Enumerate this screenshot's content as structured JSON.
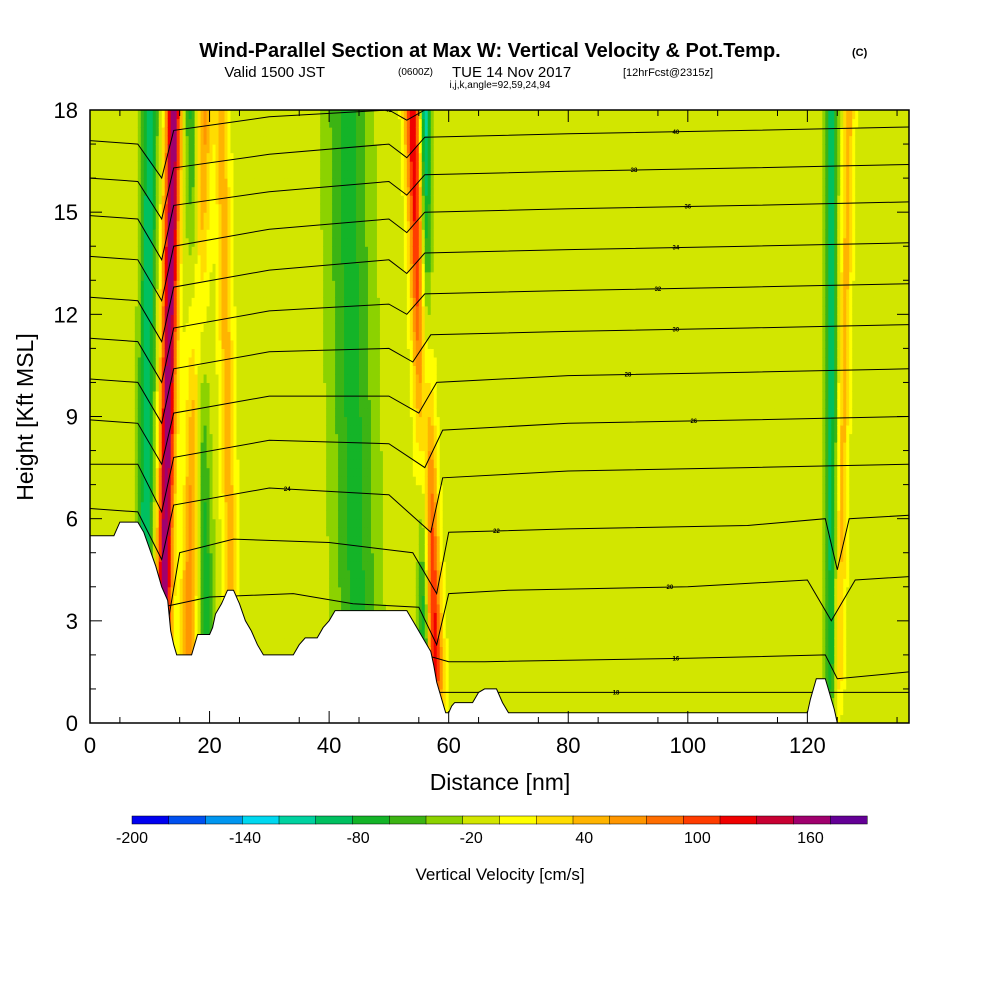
{
  "chart_data": {
    "type": "heatmap",
    "title": "Wind-Parallel Section at Max W: Vertical Velocity & Pot.Temp.",
    "title_suffix": "(C)",
    "subtitle_main": "Valid 1500 JST",
    "subtitle_z": "(0600Z)",
    "subtitle_date": "TUE 14 Nov 2017",
    "subtitle_fcst": "[12hrFcst@2315z]",
    "subtitle2": "i,j,k,angle=92,59,24,94",
    "xlabel": "Distance [nm]",
    "ylabel": "Height [Kft MSL]",
    "xlim": [
      0,
      137
    ],
    "ylim": [
      0,
      18
    ],
    "x_ticks": [
      "0",
      "20",
      "40",
      "60",
      "80",
      "100",
      "120"
    ],
    "y_ticks": [
      "0",
      "3",
      "6",
      "9",
      "12",
      "15",
      "18"
    ],
    "colorbar": {
      "label": "Vertical Velocity [cm/s]",
      "range": [
        -200,
        190
      ],
      "tick_labels": [
        "-200",
        "-140",
        "-80",
        "-20",
        "40",
        "100",
        "160"
      ],
      "colors": [
        "#0000f0",
        "#0050f0",
        "#0096f0",
        "#00d8f0",
        "#00d2a0",
        "#00c060",
        "#14b428",
        "#3cb414",
        "#8cd200",
        "#d2e600",
        "#ffff00",
        "#ffdc00",
        "#ffb400",
        "#ff9600",
        "#ff6e00",
        "#ff3c00",
        "#f00000",
        "#c80032",
        "#a0006e",
        "#640096"
      ]
    },
    "background_w": -15,
    "updrafts": [
      {
        "x_base": 12,
        "x_top": 14,
        "width": 1.3,
        "peak": 185
      },
      {
        "x_base": 16,
        "x_top": 19,
        "width": 1.4,
        "peak": 80
      },
      {
        "x_base": 24,
        "x_top": 22,
        "width": 1.2,
        "peak": 60
      },
      {
        "x_base": 58,
        "x_top": 54,
        "width": 1.4,
        "peak": 150
      },
      {
        "x_base": 125,
        "x_top": 127,
        "width": 1.0,
        "peak": 55
      }
    ],
    "downdrafts": [
      {
        "x_base": 9,
        "x_top": 10,
        "width": 1.3,
        "peak": -85
      },
      {
        "x_base": 20,
        "x_top": 17,
        "width": 1.3,
        "peak": -60
      },
      {
        "x_base": 45,
        "x_top": 43,
        "width": 3.5,
        "peak": -55
      },
      {
        "x_base": 56,
        "x_top": 56,
        "width": 1.0,
        "peak": -110
      },
      {
        "x_base": 124,
        "x_top": 124,
        "width": 1.0,
        "peak": -75
      }
    ],
    "terrain": [
      [
        0,
        5.5
      ],
      [
        4,
        5.5
      ],
      [
        5,
        5.9
      ],
      [
        8,
        5.9
      ],
      [
        9,
        5.6
      ],
      [
        10,
        5.1
      ],
      [
        11,
        4.6
      ],
      [
        12,
        4.0
      ],
      [
        13,
        3.6
      ],
      [
        13.5,
        2.7
      ],
      [
        14,
        2.3
      ],
      [
        14.5,
        2.0
      ],
      [
        17,
        2.0
      ],
      [
        17.5,
        2.3
      ],
      [
        18,
        2.6
      ],
      [
        20,
        2.6
      ],
      [
        20.5,
        2.8
      ],
      [
        21,
        3.2
      ],
      [
        22,
        3.5
      ],
      [
        23,
        3.9
      ],
      [
        24,
        3.9
      ],
      [
        25,
        3.5
      ],
      [
        26,
        3.0
      ],
      [
        27,
        2.7
      ],
      [
        28,
        2.3
      ],
      [
        29,
        2.0
      ],
      [
        34,
        2.0
      ],
      [
        35,
        2.3
      ],
      [
        36,
        2.5
      ],
      [
        38,
        2.5
      ],
      [
        39,
        2.8
      ],
      [
        40,
        3.0
      ],
      [
        41,
        3.3
      ],
      [
        53,
        3.3
      ],
      [
        54,
        3.0
      ],
      [
        55,
        2.7
      ],
      [
        56,
        2.4
      ],
      [
        57,
        2.1
      ],
      [
        57.5,
        1.7
      ],
      [
        58,
        1.2
      ],
      [
        58.5,
        0.9
      ],
      [
        59,
        0.6
      ],
      [
        59.5,
        0.3
      ],
      [
        60,
        0.3
      ],
      [
        60.5,
        0.5
      ],
      [
        61,
        0.6
      ],
      [
        64,
        0.6
      ],
      [
        65,
        0.9
      ],
      [
        66,
        1.0
      ],
      [
        68,
        1.0
      ],
      [
        69,
        0.6
      ],
      [
        70,
        0.3
      ],
      [
        120,
        0.3
      ],
      [
        120.5,
        0.7
      ],
      [
        121,
        1.0
      ],
      [
        121.5,
        1.3
      ],
      [
        123,
        1.3
      ],
      [
        123.5,
        1.0
      ],
      [
        124,
        0.7
      ],
      [
        124.5,
        0.4
      ],
      [
        125,
        0.0
      ],
      [
        137,
        0.0
      ]
    ],
    "isentropes": [
      {
        "points": [
          [
            0,
            0.8
          ],
          [
            20,
            0.9
          ],
          [
            40,
            0.8
          ],
          [
            58,
            0.9
          ],
          [
            64,
            0.9
          ],
          [
            90,
            0.9
          ],
          [
            137,
            0.9
          ]
        ],
        "label": "18",
        "label_x": 88
      },
      {
        "points": [
          [
            0,
            1.6
          ],
          [
            20,
            1.6
          ],
          [
            40,
            1.7
          ],
          [
            56,
            2.0
          ],
          [
            60,
            1.8
          ],
          [
            66,
            1.8
          ],
          [
            100,
            1.9
          ],
          [
            123,
            2.0
          ],
          [
            125,
            1.3
          ],
          [
            137,
            1.5
          ]
        ],
        "label": "16",
        "label_x": 98
      },
      {
        "points": [
          [
            0,
            3.0
          ],
          [
            12,
            3.4
          ],
          [
            20,
            3.7
          ],
          [
            34,
            3.8
          ],
          [
            44,
            3.5
          ],
          [
            55,
            3.4
          ],
          [
            58,
            2.3
          ],
          [
            60,
            3.8
          ],
          [
            70,
            3.9
          ],
          [
            100,
            4.0
          ],
          [
            120,
            4.2
          ],
          [
            124,
            3.0
          ],
          [
            128,
            4.2
          ],
          [
            137,
            4.3
          ]
        ],
        "label": "20",
        "label_x": 97
      },
      {
        "points": [
          [
            0,
            4.8
          ],
          [
            10,
            4.6
          ],
          [
            13,
            2.9
          ],
          [
            15,
            5.0
          ],
          [
            24,
            5.4
          ],
          [
            40,
            5.3
          ],
          [
            54,
            5.0
          ],
          [
            58,
            3.8
          ],
          [
            60,
            5.6
          ],
          [
            80,
            5.7
          ],
          [
            110,
            5.8
          ],
          [
            123,
            6.0
          ],
          [
            125,
            4.5
          ],
          [
            127,
            6.0
          ],
          [
            137,
            6.1
          ]
        ],
        "label": "22",
        "label_x": 68
      },
      {
        "points": [
          [
            0,
            6.3
          ],
          [
            8,
            6.2
          ],
          [
            12,
            4.8
          ],
          [
            14,
            6.4
          ],
          [
            30,
            6.9
          ],
          [
            50,
            6.7
          ],
          [
            57,
            5.6
          ],
          [
            59,
            7.2
          ],
          [
            80,
            7.4
          ],
          [
            110,
            7.5
          ],
          [
            137,
            7.6
          ]
        ],
        "label": "24",
        "label_x": 33
      },
      {
        "points": [
          [
            0,
            7.6
          ],
          [
            8,
            7.6
          ],
          [
            12,
            6.2
          ],
          [
            14,
            7.8
          ],
          [
            30,
            8.3
          ],
          [
            50,
            8.2
          ],
          [
            56,
            7.5
          ],
          [
            59,
            8.6
          ],
          [
            80,
            8.8
          ],
          [
            110,
            8.9
          ],
          [
            137,
            9.0
          ]
        ],
        "label": "26",
        "label_x": 101
      },
      {
        "points": [
          [
            0,
            8.9
          ],
          [
            8,
            8.8
          ],
          [
            12,
            7.6
          ],
          [
            14,
            9.1
          ],
          [
            30,
            9.6
          ],
          [
            50,
            9.6
          ],
          [
            55,
            9.1
          ],
          [
            58,
            10.0
          ],
          [
            80,
            10.2
          ],
          [
            110,
            10.3
          ],
          [
            137,
            10.4
          ]
        ],
        "label": "28",
        "label_x": 90
      },
      {
        "points": [
          [
            0,
            10.1
          ],
          [
            8,
            10.0
          ],
          [
            12,
            8.8
          ],
          [
            14,
            10.4
          ],
          [
            30,
            10.9
          ],
          [
            50,
            11.0
          ],
          [
            54,
            10.6
          ],
          [
            57,
            11.4
          ],
          [
            80,
            11.5
          ],
          [
            110,
            11.6
          ],
          [
            137,
            11.7
          ]
        ],
        "label": "30",
        "label_x": 98
      },
      {
        "points": [
          [
            0,
            11.3
          ],
          [
            8,
            11.2
          ],
          [
            12,
            10.0
          ],
          [
            14,
            11.6
          ],
          [
            30,
            12.1
          ],
          [
            50,
            12.3
          ],
          [
            53,
            12.0
          ],
          [
            56,
            12.6
          ],
          [
            80,
            12.7
          ],
          [
            110,
            12.8
          ],
          [
            137,
            12.9
          ]
        ],
        "label": "32",
        "label_x": 95
      },
      {
        "points": [
          [
            0,
            12.5
          ],
          [
            8,
            12.4
          ],
          [
            12,
            11.2
          ],
          [
            14,
            12.8
          ],
          [
            30,
            13.3
          ],
          [
            50,
            13.6
          ],
          [
            53,
            13.2
          ],
          [
            56,
            13.8
          ],
          [
            80,
            13.9
          ],
          [
            110,
            14.0
          ],
          [
            137,
            14.1
          ]
        ],
        "label": "34",
        "label_x": 98
      },
      {
        "points": [
          [
            0,
            13.7
          ],
          [
            8,
            13.6
          ],
          [
            12,
            12.4
          ],
          [
            14,
            14.0
          ],
          [
            30,
            14.5
          ],
          [
            50,
            14.8
          ],
          [
            53,
            14.4
          ],
          [
            56,
            15.0
          ],
          [
            80,
            15.1
          ],
          [
            110,
            15.2
          ],
          [
            137,
            15.3
          ]
        ],
        "label": "36",
        "label_x": 100
      },
      {
        "points": [
          [
            0,
            14.9
          ],
          [
            8,
            14.8
          ],
          [
            12,
            13.6
          ],
          [
            14,
            15.2
          ],
          [
            30,
            15.6
          ],
          [
            50,
            15.9
          ],
          [
            53,
            15.5
          ],
          [
            56,
            16.1
          ],
          [
            80,
            16.2
          ],
          [
            110,
            16.3
          ],
          [
            137,
            16.4
          ]
        ],
        "label": "38",
        "label_x": 91
      },
      {
        "points": [
          [
            0,
            16.0
          ],
          [
            8,
            15.9
          ],
          [
            12,
            14.8
          ],
          [
            14,
            16.3
          ],
          [
            30,
            16.7
          ],
          [
            50,
            17.0
          ],
          [
            53,
            16.6
          ],
          [
            56,
            17.2
          ],
          [
            80,
            17.3
          ],
          [
            110,
            17.4
          ],
          [
            137,
            17.5
          ]
        ],
        "label": "40",
        "label_x": 98
      },
      {
        "points": [
          [
            0,
            17.1
          ],
          [
            8,
            17.0
          ],
          [
            12,
            16.0
          ],
          [
            14,
            17.4
          ],
          [
            30,
            17.8
          ],
          [
            50,
            18.0
          ],
          [
            53,
            17.7
          ],
          [
            56,
            18.0
          ],
          [
            137,
            18.0
          ]
        ],
        "label": "42",
        "label_x": 50
      }
    ]
  }
}
